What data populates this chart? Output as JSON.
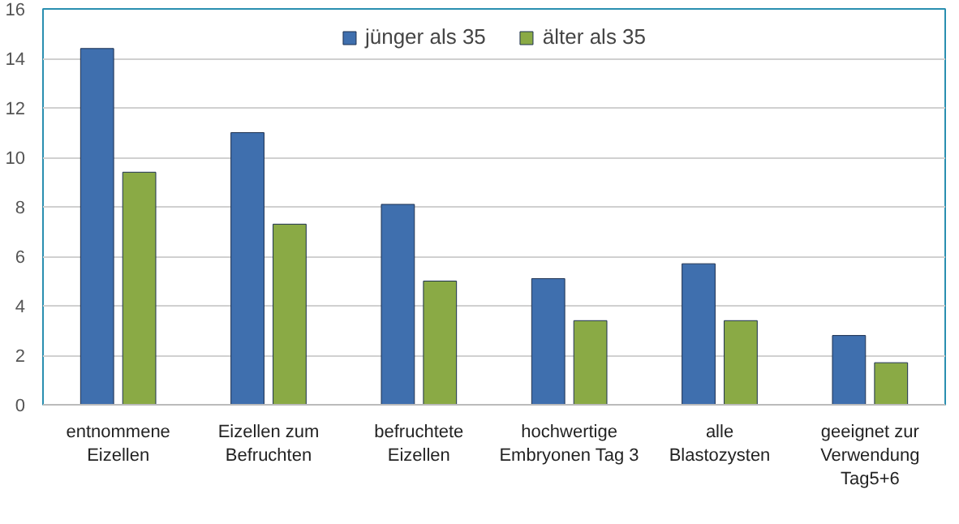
{
  "chart_data": {
    "type": "bar",
    "categories": [
      "entnommene\nEizellen",
      "Eizellen zum\nBefruchten",
      "befruchtete\nEizellen",
      "hochwertige\nEmbryonen Tag 3",
      "alle\nBlastozysten",
      "geeignet zur\nVerwendung\nTag5+6"
    ],
    "series": [
      {
        "name": "jünger als 35",
        "color": "#3f6fae",
        "values": [
          14.4,
          11.0,
          8.1,
          5.1,
          5.7,
          2.8
        ]
      },
      {
        "name": "älter als 35",
        "color": "#8aaa45",
        "values": [
          9.4,
          7.3,
          5.0,
          3.4,
          3.4,
          1.7
        ]
      }
    ],
    "ylim": [
      0,
      16
    ],
    "yticks": [
      0,
      2,
      4,
      6,
      8,
      10,
      12,
      14,
      16
    ],
    "grid": "y",
    "legend": "top"
  }
}
